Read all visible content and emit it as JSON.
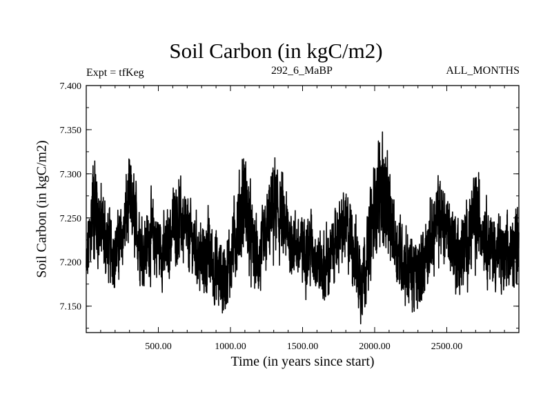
{
  "chart_data": {
    "type": "line",
    "title": "Soil Carbon (in kgC/m2)",
    "subtitle": "292_6_MaBP",
    "left_annotation": "Expt = tfKeg",
    "right_annotation": "ALL_MONTHS",
    "xlabel": "Time (in years since start)",
    "ylabel": "Soil Carbon (in kgC/m2)",
    "xlim": [
      0,
      3000
    ],
    "ylim": [
      7.12,
      7.4
    ],
    "x_ticks": [
      500,
      1000,
      1500,
      2000,
      2500
    ],
    "x_tick_labels": [
      "500.00",
      "1000.00",
      "1500.00",
      "2000.00",
      "2500.00"
    ],
    "y_ticks": [
      7.15,
      7.2,
      7.25,
      7.3,
      7.35,
      7.4
    ],
    "y_tick_labels": [
      "7.150",
      "7.200",
      "7.250",
      "7.300",
      "7.350",
      "7.400"
    ],
    "grid": false,
    "series": [
      {
        "color": "#000000",
        "x": [
          0,
          50,
          100,
          150,
          200,
          250,
          300,
          350,
          400,
          450,
          500,
          550,
          600,
          650,
          700,
          750,
          800,
          850,
          900,
          950,
          1000,
          1050,
          1100,
          1150,
          1200,
          1250,
          1300,
          1350,
          1400,
          1450,
          1500,
          1550,
          1600,
          1650,
          1700,
          1750,
          1800,
          1850,
          1900,
          1950,
          2000,
          2050,
          2100,
          2150,
          2200,
          2250,
          2300,
          2350,
          2400,
          2450,
          2500,
          2550,
          2600,
          2650,
          2700,
          2750,
          2800,
          2850,
          2900,
          2950,
          3000
        ],
        "values": [
          7.19,
          7.27,
          7.24,
          7.22,
          7.21,
          7.23,
          7.27,
          7.24,
          7.21,
          7.23,
          7.22,
          7.21,
          7.24,
          7.25,
          7.23,
          7.22,
          7.2,
          7.21,
          7.19,
          7.18,
          7.2,
          7.24,
          7.27,
          7.22,
          7.2,
          7.23,
          7.26,
          7.25,
          7.23,
          7.22,
          7.21,
          7.22,
          7.2,
          7.19,
          7.21,
          7.23,
          7.24,
          7.22,
          7.18,
          7.21,
          7.26,
          7.29,
          7.25,
          7.22,
          7.2,
          7.19,
          7.18,
          7.21,
          7.23,
          7.25,
          7.24,
          7.22,
          7.2,
          7.23,
          7.25,
          7.24,
          7.22,
          7.21,
          7.2,
          7.21,
          7.23
        ],
        "variability": [
          0.05,
          0.09,
          0.07,
          0.06,
          0.05,
          0.05,
          0.07,
          0.06,
          0.06,
          0.06,
          0.06,
          0.05,
          0.06,
          0.06,
          0.06,
          0.05,
          0.06,
          0.06,
          0.06,
          0.06,
          0.06,
          0.07,
          0.09,
          0.06,
          0.06,
          0.06,
          0.08,
          0.07,
          0.06,
          0.05,
          0.06,
          0.06,
          0.05,
          0.06,
          0.05,
          0.05,
          0.06,
          0.06,
          0.07,
          0.06,
          0.08,
          0.09,
          0.07,
          0.06,
          0.06,
          0.06,
          0.06,
          0.06,
          0.06,
          0.07,
          0.06,
          0.06,
          0.07,
          0.06,
          0.08,
          0.06,
          0.06,
          0.06,
          0.06,
          0.06,
          0.06
        ]
      }
    ]
  }
}
